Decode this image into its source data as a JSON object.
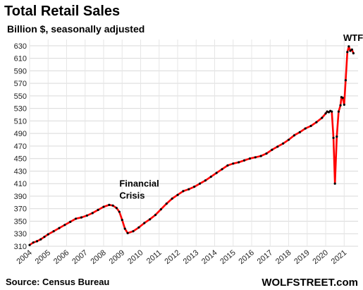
{
  "chart_data": {
    "type": "line",
    "title": "Total Retail Sales",
    "subtitle": "Billion $, seasonally adjusted",
    "xlabel": "",
    "ylabel": "",
    "ylim": [
      310,
      640
    ],
    "xlim": [
      2004.0,
      2021.75
    ],
    "yticks": [
      310,
      330,
      350,
      370,
      390,
      410,
      430,
      450,
      470,
      490,
      510,
      530,
      550,
      570,
      590,
      610,
      630
    ],
    "xticks": [
      "2004",
      "2005",
      "2006",
      "2007",
      "2008",
      "2009",
      "2010",
      "2011",
      "2012",
      "2013",
      "2014",
      "2015",
      "2016",
      "2017",
      "2018",
      "2019",
      "2020",
      "2021"
    ],
    "grid": true,
    "series_color": "#ff0000",
    "marker_color": "#000000",
    "annotations": [
      {
        "text_lines": [
          "Financial",
          "Crisis"
        ],
        "x": 2008.85,
        "y": 405
      },
      {
        "text_lines": [
          "WTF"
        ],
        "x": 2020.95,
        "y": 638
      }
    ],
    "source": "Source: Census Bureau",
    "brand": "WOLFSTREET.com",
    "series": [
      {
        "x": [
          2004.0,
          2004.2,
          2004.4,
          2004.6,
          2004.8,
          2005.0,
          2005.3,
          2005.6,
          2005.9,
          2006.2,
          2006.5,
          2006.8,
          2007.1,
          2007.4,
          2007.7,
          2008.0,
          2008.3,
          2008.5,
          2008.7,
          2008.85,
          2009.0,
          2009.15,
          2009.3,
          2009.6,
          2009.9,
          2010.2,
          2010.5,
          2010.8,
          2011.1,
          2011.4,
          2011.7,
          2012.0,
          2012.3,
          2012.6,
          2012.9,
          2013.2,
          2013.5,
          2013.8,
          2014.1,
          2014.4,
          2014.7,
          2015.0,
          2015.3,
          2015.6,
          2015.9,
          2016.2,
          2016.5,
          2016.8,
          2017.1,
          2017.4,
          2017.7,
          2018.0,
          2018.3,
          2018.6,
          2018.9,
          2019.2,
          2019.5,
          2019.8,
          2020.0,
          2020.08,
          2020.17,
          2020.25,
          2020.33,
          2020.42,
          2020.5,
          2020.6,
          2020.7,
          2020.8,
          2020.85,
          2020.92,
          2021.0,
          2021.08,
          2021.17,
          2021.25,
          2021.33,
          2021.42,
          2021.5
        ],
        "values": [
          312,
          316,
          318,
          321,
          325,
          329,
          334,
          339,
          344,
          349,
          354,
          356,
          359,
          363,
          368,
          373,
          376,
          375,
          371,
          365,
          352,
          338,
          331,
          334,
          340,
          347,
          353,
          360,
          369,
          378,
          386,
          392,
          398,
          401,
          405,
          410,
          415,
          421,
          427,
          433,
          439,
          442,
          444,
          447,
          450,
          452,
          454,
          458,
          464,
          469,
          474,
          480,
          487,
          492,
          498,
          502,
          508,
          515,
          522,
          525,
          524,
          526,
          525,
          483,
          410,
          485,
          525,
          535,
          548,
          547,
          536,
          575,
          620,
          629,
          622,
          624,
          618
        ]
      }
    ]
  }
}
